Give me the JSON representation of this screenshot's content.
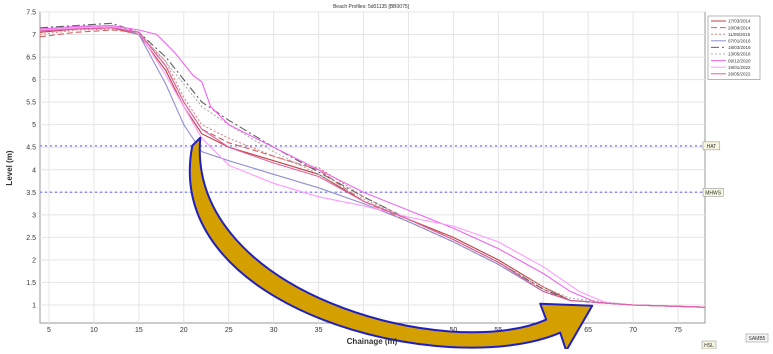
{
  "chart_data": {
    "type": "line",
    "title": "Beach Profiles: 5d01135 [BB0075]",
    "xlabel": "Chainage (m)",
    "ylabel": "Level (m)",
    "xlim": [
      4,
      78
    ],
    "ylim": [
      0.6,
      7.5
    ],
    "xticks": [
      5,
      10,
      15,
      20,
      25,
      30,
      35,
      40,
      45,
      50,
      55,
      60,
      65,
      70,
      75
    ],
    "yticks": [
      1,
      1.5,
      2,
      2.5,
      3,
      3.5,
      4,
      4.5,
      5,
      5.5,
      6,
      6.5,
      7,
      7.5
    ],
    "grid": true,
    "legend_position": "top-right",
    "series": [
      {
        "name": "17/03/2014",
        "color": "#c04040",
        "dash": "none",
        "points": [
          [
            4,
            7.05
          ],
          [
            8,
            7.12
          ],
          [
            12,
            7.15
          ],
          [
            15,
            7.0
          ],
          [
            18,
            6.2
          ],
          [
            20,
            5.4
          ],
          [
            22,
            4.8
          ],
          [
            25,
            4.5
          ],
          [
            30,
            4.2
          ],
          [
            35,
            3.9
          ],
          [
            40,
            3.3
          ],
          [
            45,
            2.9
          ],
          [
            50,
            2.5
          ],
          [
            55,
            2.0
          ],
          [
            60,
            1.4
          ],
          [
            63,
            1.1
          ],
          [
            70,
            1.0
          ],
          [
            78,
            0.95
          ]
        ]
      },
      {
        "name": "28/09/2014",
        "color": "#d06060",
        "dash": "6 3",
        "points": [
          [
            4,
            6.95
          ],
          [
            8,
            7.05
          ],
          [
            12,
            7.1
          ],
          [
            15,
            7.05
          ],
          [
            18,
            6.3
          ],
          [
            20,
            5.5
          ],
          [
            22,
            4.9
          ],
          [
            25,
            4.6
          ],
          [
            30,
            4.3
          ],
          [
            35,
            4.0
          ],
          [
            40,
            3.3
          ],
          [
            45,
            2.85
          ],
          [
            50,
            2.4
          ],
          [
            55,
            1.9
          ],
          [
            60,
            1.3
          ],
          [
            63,
            1.1
          ],
          [
            70,
            1.0
          ],
          [
            78,
            0.95
          ]
        ]
      },
      {
        "name": "11/09/2015",
        "color": "#e08080",
        "dash": "2 2",
        "points": [
          [
            4,
            7.0
          ],
          [
            8,
            7.1
          ],
          [
            12,
            7.12
          ],
          [
            15,
            7.0
          ],
          [
            18,
            6.4
          ],
          [
            20,
            5.6
          ],
          [
            22,
            5.0
          ],
          [
            25,
            4.7
          ],
          [
            30,
            4.3
          ],
          [
            33,
            4.1
          ],
          [
            35,
            4.05
          ],
          [
            40,
            3.4
          ],
          [
            45,
            2.9
          ],
          [
            50,
            2.45
          ],
          [
            55,
            1.95
          ],
          [
            60,
            1.35
          ],
          [
            63,
            1.1
          ],
          [
            70,
            1.0
          ],
          [
            78,
            0.95
          ]
        ]
      },
      {
        "name": "07/01/2016",
        "color": "#9090d0",
        "dash": "none",
        "points": [
          [
            4,
            7.1
          ],
          [
            8,
            7.15
          ],
          [
            12,
            7.2
          ],
          [
            15,
            7.0
          ],
          [
            18,
            5.9
          ],
          [
            20,
            5.0
          ],
          [
            22,
            4.4
          ],
          [
            25,
            4.2
          ],
          [
            30,
            3.9
          ],
          [
            35,
            3.6
          ],
          [
            40,
            3.25
          ],
          [
            45,
            2.85
          ],
          [
            50,
            2.4
          ],
          [
            55,
            1.9
          ],
          [
            60,
            1.3
          ],
          [
            63,
            1.1
          ],
          [
            70,
            1.0
          ],
          [
            78,
            0.95
          ]
        ]
      },
      {
        "name": "18/03/2016",
        "color": "#606060",
        "dash": "8 3 2 3",
        "points": [
          [
            4,
            7.15
          ],
          [
            8,
            7.2
          ],
          [
            12,
            7.25
          ],
          [
            15,
            7.05
          ],
          [
            18,
            6.5
          ],
          [
            20,
            6.0
          ],
          [
            22,
            5.5
          ],
          [
            25,
            5.1
          ],
          [
            30,
            4.5
          ],
          [
            35,
            3.95
          ],
          [
            40,
            3.4
          ],
          [
            45,
            2.9
          ],
          [
            50,
            2.45
          ],
          [
            55,
            1.95
          ],
          [
            60,
            1.35
          ],
          [
            63,
            1.1
          ],
          [
            70,
            1.0
          ],
          [
            78,
            0.95
          ]
        ]
      },
      {
        "name": "13/05/2018",
        "color": "#b0b0b0",
        "dash": "2 2",
        "points": [
          [
            4,
            7.1
          ],
          [
            8,
            7.15
          ],
          [
            12,
            7.2
          ],
          [
            15,
            7.05
          ],
          [
            18,
            6.4
          ],
          [
            20,
            5.9
          ],
          [
            22,
            5.4
          ],
          [
            25,
            5.0
          ],
          [
            30,
            4.4
          ],
          [
            35,
            3.9
          ],
          [
            40,
            3.35
          ],
          [
            45,
            2.9
          ],
          [
            50,
            2.45
          ],
          [
            55,
            1.95
          ],
          [
            60,
            1.4
          ],
          [
            63,
            1.15
          ],
          [
            70,
            1.0
          ],
          [
            78,
            0.95
          ]
        ]
      },
      {
        "name": "09/12/2020",
        "color": "#ee66ee",
        "dash": "none",
        "points": [
          [
            4,
            7.12
          ],
          [
            8,
            7.18
          ],
          [
            12,
            7.2
          ],
          [
            15,
            7.1
          ],
          [
            17,
            7.0
          ],
          [
            19,
            6.6
          ],
          [
            21,
            6.1
          ],
          [
            22,
            5.95
          ],
          [
            23,
            5.4
          ],
          [
            25,
            5.0
          ],
          [
            30,
            4.5
          ],
          [
            35,
            4.0
          ],
          [
            40,
            3.5
          ],
          [
            45,
            3.1
          ],
          [
            50,
            2.7
          ],
          [
            55,
            2.25
          ],
          [
            60,
            1.7
          ],
          [
            63,
            1.3
          ],
          [
            66,
            1.05
          ],
          [
            70,
            1.0
          ],
          [
            78,
            0.95
          ]
        ]
      },
      {
        "name": "19/01/2022",
        "color": "#ff99ff",
        "dash": "none",
        "points": [
          [
            4,
            7.1
          ],
          [
            8,
            7.15
          ],
          [
            12,
            7.18
          ],
          [
            15,
            7.05
          ],
          [
            18,
            6.1
          ],
          [
            20,
            5.4
          ],
          [
            22,
            4.7
          ],
          [
            25,
            4.1
          ],
          [
            30,
            3.7
          ],
          [
            35,
            3.4
          ],
          [
            40,
            3.2
          ],
          [
            45,
            2.95
          ],
          [
            50,
            2.75
          ],
          [
            55,
            2.4
          ],
          [
            60,
            1.85
          ],
          [
            64,
            1.3
          ],
          [
            67,
            1.05
          ],
          [
            70,
            1.0
          ],
          [
            78,
            0.95
          ]
        ]
      },
      {
        "name": "26/05/2022",
        "color": "#e060a0",
        "dash": "none",
        "points": [
          [
            4,
            7.08
          ],
          [
            8,
            7.12
          ],
          [
            12,
            7.15
          ],
          [
            15,
            7.05
          ],
          [
            18,
            6.3
          ],
          [
            20,
            5.5
          ],
          [
            22,
            4.9
          ],
          [
            25,
            4.5
          ],
          [
            30,
            4.15
          ],
          [
            35,
            3.85
          ],
          [
            40,
            3.3
          ],
          [
            45,
            2.9
          ],
          [
            50,
            2.45
          ],
          [
            55,
            1.95
          ],
          [
            60,
            1.3
          ],
          [
            63,
            1.1
          ],
          [
            70,
            1.0
          ],
          [
            78,
            0.95
          ]
        ]
      }
    ],
    "reference_lines": [
      {
        "label": "HAT",
        "y": 4.53,
        "color": "#8888ff"
      },
      {
        "label": "MHWS",
        "y": 3.5,
        "color": "#8888ff"
      }
    ],
    "annotations": [
      {
        "type": "curved-arrow",
        "fill": "#d4a000",
        "stroke": "#2020c0",
        "from": [
          22.5,
          4.8
        ],
        "to": [
          65,
          1.05
        ]
      }
    ],
    "corner_labels": {
      "lower_right_tag": "HSL",
      "far_right_tag": "SAMB5"
    }
  }
}
